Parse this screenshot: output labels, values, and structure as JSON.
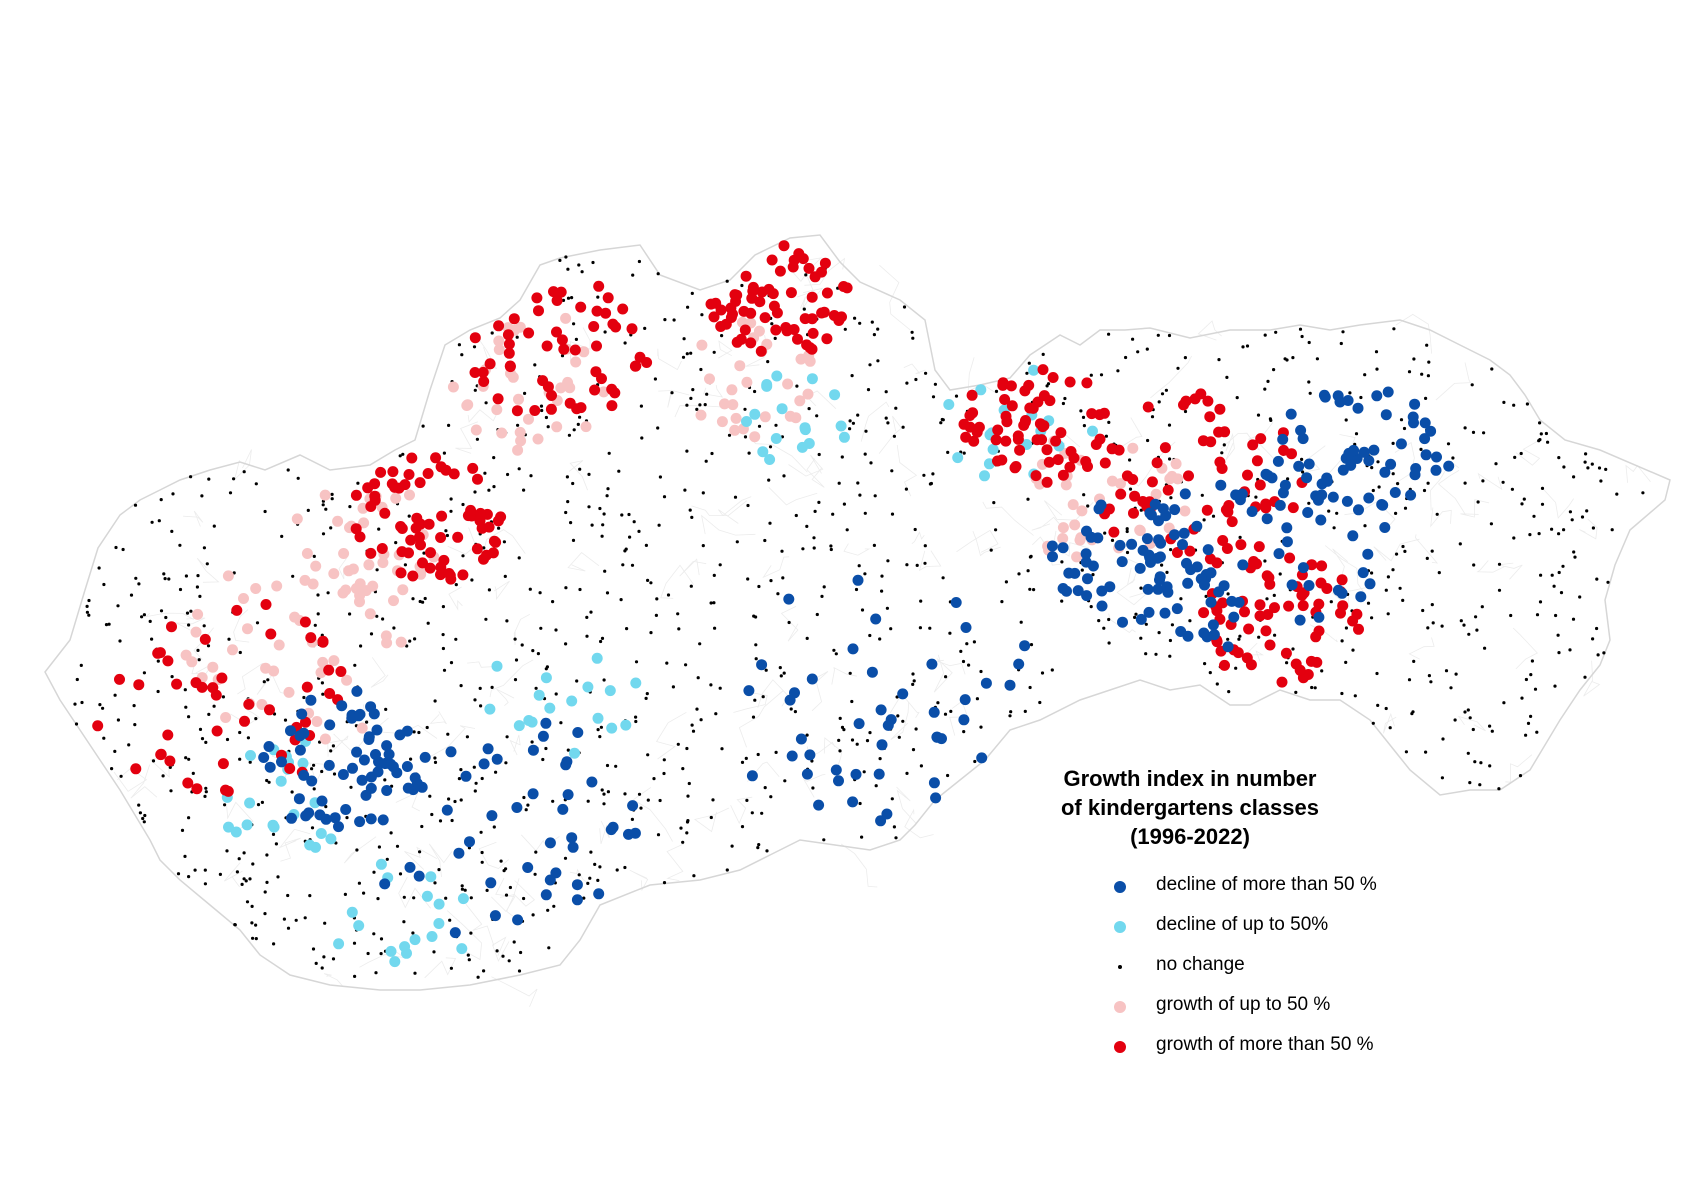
{
  "legend": {
    "title_line1": "Growth index in number",
    "title_line2": "of kindergartens classes",
    "title_line3": "(1996-2022)",
    "items": [
      {
        "label": "decline of more than 50 %",
        "color": "#0a4ea8",
        "symbol": "large-dot"
      },
      {
        "label": "decline of up to 50%",
        "color": "#72d8ee",
        "symbol": "large-dot"
      },
      {
        "label": "no change",
        "color": "#000000",
        "symbol": "small-dot"
      },
      {
        "label": "growth of up to 50 %",
        "color": "#f7c3c3",
        "symbol": "large-dot"
      },
      {
        "label": "growth of more than 50 %",
        "color": "#e3000f",
        "symbol": "large-dot"
      }
    ]
  },
  "colors": {
    "outline": "#d6d6d6",
    "background": "#ffffff"
  }
}
